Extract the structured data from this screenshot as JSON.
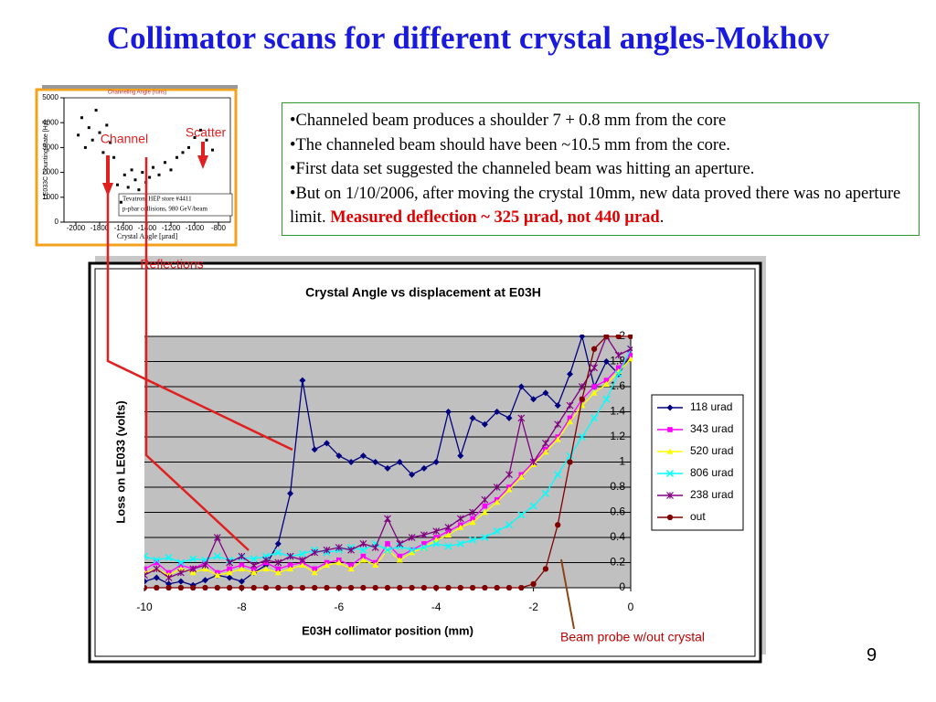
{
  "title": "Collimator scans for different crystal angles-Mokhov",
  "bullets": [
    {
      "text": "•Channeled beam produces a shoulder 7 + 0.8 mm from the core"
    },
    {
      "text": "•The channeled beam should have been ~10.5 mm from the core."
    },
    {
      "text": "•First data set suggested the channeled beam was hitting an aperture."
    },
    {
      "text": "•But on 1/10/2006, after moving the crystal 10mm, new data  proved there was no aperture limit. ",
      "highlight": "Measured deflection ~ 325 µrad, not 440 µrad",
      "end": "."
    }
  ],
  "callouts": {
    "channel": "Channel",
    "scatter": "Scatter",
    "reflections": "Reflections",
    "beam_probe": "Beam probe w/out crystal"
  },
  "page_number": "9",
  "chart_data": [
    {
      "type": "scatter",
      "title": "Channeling Angle (runs)",
      "x_label": "Crystal Angle [µrad]",
      "y_label": "LE033C  Counting Rate [Hz]",
      "annotations": [
        "Tevatron, HEP store #4411",
        "p-pbar collisions, 980 GeV/beam"
      ],
      "xlim": [
        -2100,
        -700
      ],
      "xticks": [
        -2000,
        -1800,
        -1600,
        -1400,
        -1200,
        -1000,
        -800
      ],
      "ylim": [
        0,
        5000
      ],
      "yticks": [
        0,
        1000,
        2000,
        3000,
        4000,
        5000
      ],
      "color": "#000000",
      "x": [
        -1980,
        -1950,
        -1920,
        -1890,
        -1860,
        -1830,
        -1800,
        -1770,
        -1740,
        -1710,
        -1680,
        -1650,
        -1620,
        -1590,
        -1560,
        -1530,
        -1500,
        -1470,
        -1440,
        -1410,
        -1380,
        -1350,
        -1300,
        -1250,
        -1200,
        -1150,
        -1100,
        -1050,
        -1000,
        -950,
        -900,
        -850
      ],
      "values": [
        3500,
        4200,
        3000,
        3800,
        3300,
        4500,
        3600,
        2800,
        3900,
        3200,
        2600,
        1500,
        800,
        1900,
        1400,
        2100,
        1700,
        1300,
        2000,
        1600,
        1800,
        2200,
        1900,
        2400,
        2100,
        2600,
        2800,
        3000,
        3400,
        3700,
        3300,
        2900
      ]
    },
    {
      "type": "line",
      "title": "Crystal Angle vs displacement at E03H",
      "x_label": "E03H collimator position (mm)",
      "y_label": "Loss on LE033 (volts)",
      "xlim": [
        -10,
        0
      ],
      "xticks": [
        -10,
        -8,
        -6,
        -4,
        -2,
        0
      ],
      "ylim": [
        0,
        2
      ],
      "yticks": [
        0,
        0.2,
        0.4,
        0.6,
        0.8,
        1,
        1.2,
        1.4,
        1.6,
        1.8,
        2
      ],
      "grid": true,
      "legend": "right",
      "background": "#c0c0c0",
      "x": [
        -10,
        -9.75,
        -9.5,
        -9.25,
        -9,
        -8.75,
        -8.5,
        -8.25,
        -8,
        -7.75,
        -7.5,
        -7.25,
        -7,
        -6.75,
        -6.5,
        -6.25,
        -6,
        -5.75,
        -5.5,
        -5.25,
        -5,
        -4.75,
        -4.5,
        -4.25,
        -4,
        -3.75,
        -3.5,
        -3.25,
        -3,
        -2.75,
        -2.5,
        -2.25,
        -2,
        -1.75,
        -1.5,
        -1.25,
        -1,
        -0.75,
        -0.5,
        -0.25,
        0
      ],
      "series": [
        {
          "name": "118 urad",
          "color": "#000080",
          "marker": "diamond",
          "values": [
            0.05,
            0.08,
            0.03,
            0.05,
            0.02,
            0.06,
            0.1,
            0.08,
            0.05,
            0.12,
            0.18,
            0.35,
            0.75,
            1.65,
            1.1,
            1.15,
            1.05,
            1.0,
            1.05,
            1.0,
            0.95,
            1.0,
            0.9,
            0.95,
            1.0,
            1.4,
            1.05,
            1.35,
            1.3,
            1.4,
            1.35,
            1.6,
            1.5,
            1.55,
            1.45,
            1.7,
            2.0,
            1.6,
            1.8,
            1.7,
            1.85
          ]
        },
        {
          "name": "343 urad",
          "color": "#ff00ff",
          "marker": "square",
          "values": [
            0.15,
            0.2,
            0.12,
            0.18,
            0.15,
            0.2,
            0.12,
            0.15,
            0.18,
            0.15,
            0.2,
            0.15,
            0.18,
            0.2,
            0.15,
            0.2,
            0.22,
            0.18,
            0.25,
            0.2,
            0.35,
            0.25,
            0.3,
            0.35,
            0.4,
            0.45,
            0.5,
            0.55,
            0.65,
            0.7,
            0.8,
            0.9,
            1.0,
            1.1,
            1.2,
            1.35,
            1.5,
            1.6,
            1.65,
            1.75,
            1.85
          ]
        },
        {
          "name": "520 urad",
          "color": "#ffff00",
          "marker": "triangle",
          "values": [
            0.12,
            0.15,
            0.1,
            0.15,
            0.12,
            0.15,
            0.1,
            0.12,
            0.15,
            0.12,
            0.15,
            0.12,
            0.15,
            0.18,
            0.12,
            0.18,
            0.2,
            0.15,
            0.22,
            0.18,
            0.3,
            0.22,
            0.28,
            0.32,
            0.38,
            0.42,
            0.48,
            0.52,
            0.6,
            0.68,
            0.78,
            0.88,
            0.98,
            1.08,
            1.18,
            1.32,
            1.45,
            1.55,
            1.62,
            1.72,
            1.82
          ]
        },
        {
          "name": "806 urad",
          "color": "#00ffff",
          "marker": "x",
          "values": [
            0.25,
            0.22,
            0.24,
            0.2,
            0.23,
            0.22,
            0.25,
            0.22,
            0.24,
            0.23,
            0.25,
            0.28,
            0.25,
            0.27,
            0.3,
            0.28,
            0.3,
            0.32,
            0.3,
            0.35,
            0.3,
            0.33,
            0.3,
            0.32,
            0.35,
            0.33,
            0.35,
            0.38,
            0.4,
            0.45,
            0.5,
            0.58,
            0.65,
            0.75,
            0.9,
            1.05,
            1.2,
            1.35,
            1.5,
            1.7,
            1.9
          ]
        },
        {
          "name": "238 urad",
          "color": "#800080",
          "marker": "star",
          "values": [
            0.1,
            0.15,
            0.08,
            0.12,
            0.15,
            0.18,
            0.4,
            0.2,
            0.25,
            0.18,
            0.22,
            0.2,
            0.25,
            0.22,
            0.28,
            0.3,
            0.32,
            0.3,
            0.35,
            0.32,
            0.55,
            0.35,
            0.4,
            0.42,
            0.45,
            0.48,
            0.55,
            0.6,
            0.7,
            0.8,
            0.9,
            1.35,
            1.0,
            1.15,
            1.3,
            1.45,
            1.6,
            1.75,
            2.0,
            1.85,
            1.9
          ]
        },
        {
          "name": "out",
          "color": "#800000",
          "marker": "circle",
          "values": [
            0,
            0,
            0,
            0,
            0,
            0,
            0,
            0,
            0,
            0,
            0,
            0,
            0,
            0,
            0,
            0,
            0,
            0,
            0,
            0,
            0,
            0,
            0,
            0,
            0,
            0,
            0,
            0,
            0,
            0,
            0,
            0,
            0.03,
            0.15,
            0.5,
            1.0,
            1.5,
            1.9,
            2.0,
            2.0,
            2.0
          ]
        }
      ]
    }
  ]
}
